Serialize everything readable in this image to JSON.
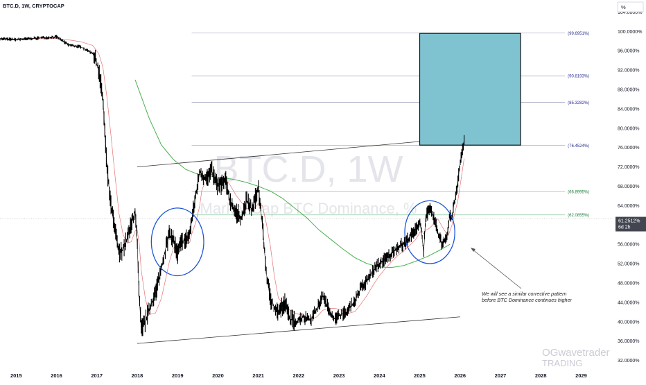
{
  "header": {
    "symbol": "BTC.D, 1W, CRYPTOCAP"
  },
  "scale_button": {
    "label": "%"
  },
  "watermark": {
    "title": "BTC.D, 1W",
    "subtitle": "Market Cap BTC Dominance, %"
  },
  "brand": {
    "line1": "OGwavetrader",
    "line2": "TRADING"
  },
  "annotation": {
    "line1": "We will see a similar corrective pattern",
    "line2": "before BTC Dominance continues higher"
  },
  "price_badge": {
    "value": "61.2512%",
    "countdown": "6d 2h",
    "color": "#434651"
  },
  "colors": {
    "candle": "#000000",
    "ma_long": "#4caf50",
    "ma_short": "#e57373",
    "box_fill": "#7fc3d0",
    "ellipse": "#1e56d8",
    "fib_line": "#2a2e8c"
  },
  "chart_data": {
    "type": "line",
    "x_axis": {
      "labels": [
        "2015",
        "2016",
        "2017",
        "2018",
        "2019",
        "2020",
        "2021",
        "2022",
        "2023",
        "2024",
        "2025",
        "2026",
        "2027",
        "2028",
        "2029"
      ],
      "range": [
        2014.6,
        2029.8
      ]
    },
    "y_axis": {
      "unit": "%",
      "ticks": [
        32,
        36,
        40,
        44,
        48,
        52,
        56,
        60,
        64,
        68,
        72,
        76,
        80,
        84,
        88,
        92,
        96,
        100,
        104
      ],
      "tick_labels": [
        "32.0000%",
        "36.0000%",
        "40.0000%",
        "44.0000%",
        "48.0000%",
        "52.0000%",
        "56.0000%",
        "60.0000%",
        "64.0000%",
        "68.0000%",
        "72.0000%",
        "76.0000%",
        "80.0000%",
        "84.0000%",
        "88.0000%",
        "92.0000%",
        "96.0000%",
        "100.0000%",
        "104.0000%"
      ],
      "range": [
        30.5,
        106.5
      ]
    },
    "series": [
      {
        "name": "",
        "x": [
          2014.6,
          2015.0,
          2015.5,
          2016.0,
          2016.3,
          2016.6,
          2016.9,
          2017.05,
          2017.15,
          2017.25,
          2017.35,
          2017.45,
          2017.55,
          2017.65,
          2017.75,
          2017.85,
          2017.95,
          2018.0,
          2018.05,
          2018.1,
          2018.2,
          2018.3,
          2018.45,
          2018.6,
          2018.7,
          2018.8,
          2018.9,
          2019.0,
          2019.1,
          2019.2,
          2019.3,
          2019.35,
          2019.45,
          2019.55,
          2019.6,
          2019.7,
          2019.85,
          2020.0,
          2020.2,
          2020.3,
          2020.45,
          2020.6,
          2020.7,
          2020.85,
          2021.0,
          2021.1,
          2021.2,
          2021.3,
          2021.4,
          2021.5,
          2021.65,
          2021.8,
          2021.95,
          2022.1,
          2022.3,
          2022.45,
          2022.6,
          2022.75,
          2022.9,
          2023.05,
          2023.2,
          2023.4,
          2023.55,
          2023.7,
          2023.85,
          2024.0,
          2024.15,
          2024.3,
          2024.45,
          2024.6,
          2024.75,
          2024.9,
          2025.0,
          2025.05,
          2025.1,
          2025.15,
          2025.25,
          2025.35,
          2025.45,
          2025.55,
          2025.65,
          2025.7,
          2025.75,
          2025.8,
          2025.85,
          2025.9,
          2025.95,
          2026.0,
          2026.05,
          2026.1
        ],
        "y": [
          98.5,
          98.3,
          98.6,
          98.9,
          97.2,
          96.8,
          95.5,
          92.0,
          86.0,
          72.0,
          64.0,
          59.0,
          54.0,
          55.0,
          57.0,
          60.0,
          63.0,
          56.0,
          45.0,
          38.5,
          40.0,
          42.5,
          46.0,
          51.0,
          55.0,
          58.0,
          57.0,
          54.0,
          56.5,
          57.0,
          58.0,
          61.0,
          66.0,
          71.0,
          70.5,
          69.5,
          71.0,
          68.0,
          69.0,
          65.0,
          62.5,
          61.5,
          65.0,
          63.0,
          68.0,
          60.0,
          50.0,
          44.5,
          43.0,
          42.0,
          44.0,
          40.5,
          40.0,
          41.0,
          40.5,
          42.5,
          45.5,
          42.5,
          40.5,
          41.5,
          42.0,
          44.5,
          47.0,
          48.5,
          50.5,
          52.0,
          53.0,
          54.0,
          55.5,
          56.0,
          57.5,
          59.0,
          61.0,
          58.0,
          54.5,
          62.0,
          63.0,
          61.5,
          58.5,
          56.0,
          57.5,
          59.0,
          62.5,
          61.0,
          64.5,
          66.0,
          69.5,
          72.5,
          75.5,
          77.5
        ]
      }
    ],
    "overlays": {
      "ma_long": {
        "x": [
          2017.95,
          2018.3,
          2018.6,
          2018.9,
          2019.2,
          2019.5,
          2019.8,
          2020.1,
          2020.4,
          2020.7,
          2021.0,
          2021.3,
          2021.6,
          2021.9,
          2022.2,
          2022.5,
          2022.8,
          2023.1,
          2023.4,
          2023.7,
          2024.0,
          2024.3,
          2024.6,
          2024.9,
          2025.2,
          2025.5,
          2025.75
        ],
        "y": [
          90.0,
          82.0,
          76.5,
          73.5,
          71.5,
          70.5,
          70.0,
          69.8,
          69.4,
          68.8,
          68.0,
          67.0,
          65.5,
          63.5,
          61.5,
          59.0,
          57.0,
          55.0,
          53.2,
          52.0,
          51.3,
          51.2,
          51.6,
          52.5,
          53.5,
          54.8,
          56.0
        ]
      },
      "trend_upper": {
        "x": [
          2018.0,
          2026.0
        ],
        "y": [
          72.0,
          78.0
        ]
      },
      "trend_lower": {
        "x": [
          2018.0,
          2026.0
        ],
        "y": [
          35.5,
          41.0
        ]
      },
      "target_box": {
        "x": [
          2025.0,
          2027.5
        ],
        "y": [
          76.5,
          99.6
        ]
      },
      "ellipses": [
        {
          "cx": 2019.0,
          "cy": 56.5,
          "rx": 0.65,
          "ry": 7.0
        },
        {
          "cx": 2025.25,
          "cy": 58.5,
          "rx": 0.62,
          "ry": 6.5
        }
      ],
      "current_price": 61.25
    },
    "fib_levels": [
      {
        "label": "(99.6951%)",
        "value": 99.6951
      },
      {
        "label": "(90.8193%)",
        "value": 90.8193
      },
      {
        "label": "(85.3282%)",
        "value": 85.3282
      },
      {
        "label": "(76.4524%)",
        "value": 76.4524
      },
      {
        "label": "(66.8995%)",
        "value": 66.8995
      },
      {
        "label": "(62.0855%)",
        "value": 62.0855
      }
    ]
  }
}
